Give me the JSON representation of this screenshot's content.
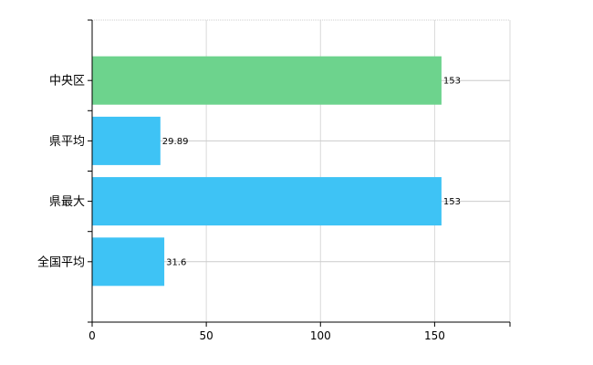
{
  "chart_data": {
    "type": "bar",
    "orientation": "horizontal",
    "title": "",
    "xlabel": "",
    "ylabel": "",
    "categories": [
      "中央区",
      "県平均",
      "県最大",
      "全国平均"
    ],
    "values": [
      153,
      29.89,
      153,
      31.6
    ],
    "data_labels": [
      "153",
      "29.89",
      "153",
      "31.6"
    ],
    "bar_colors": [
      "#6dd38d",
      "#3ec3f5",
      "#3ec3f5",
      "#3ec3f5"
    ],
    "xlim": [
      0,
      183
    ],
    "xticks": [
      0,
      50,
      100,
      150
    ],
    "xtick_labels": [
      "0",
      "50",
      "100",
      "150"
    ],
    "grid": true,
    "legend": "none"
  }
}
